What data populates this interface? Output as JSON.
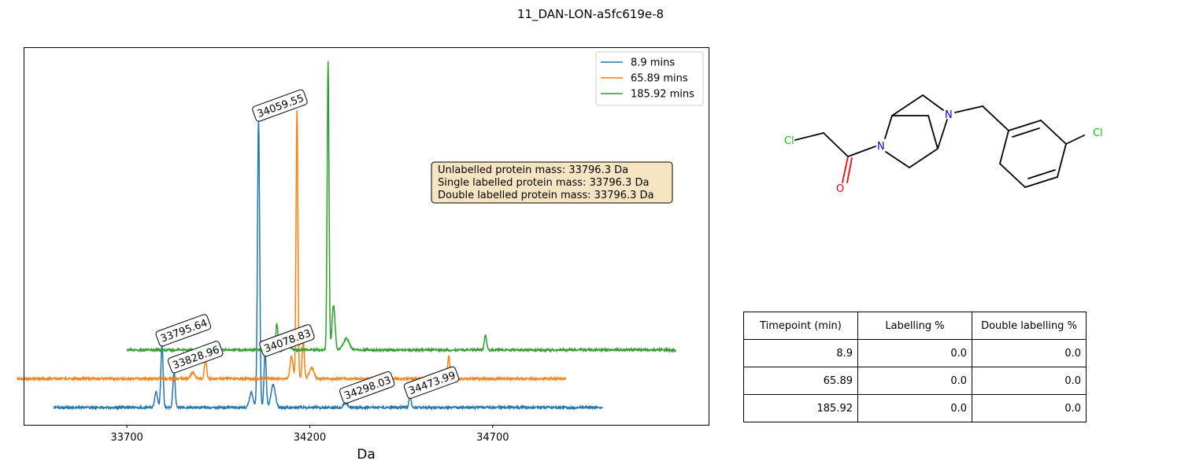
{
  "figure": {
    "title": "11_DAN-LON-a5fc619e-8"
  },
  "chart_data": {
    "type": "line",
    "xlabel": "Da",
    "ylabel": "",
    "xlim": [
      33420,
      35290
    ],
    "xticks": [
      33700,
      34200,
      34700
    ],
    "grid": false,
    "legend_position": "top-right",
    "info_box": [
      "Unlabelled protein mass: 33796.3 Da",
      "Single labelled protein mass: 33796.3 Da",
      "Double labelled protein mass: 33796.3 Da"
    ],
    "series": [
      {
        "name": "8.9 mins",
        "color": "#1f77b4",
        "baseline": 0.0,
        "x_range": [
          33500,
          35000
        ],
        "peaks": [
          {
            "x": 33780,
            "h": 0.04,
            "w": 4
          },
          {
            "x": 33796,
            "h": 0.17,
            "w": 3
          },
          {
            "x": 33829,
            "h": 0.1,
            "w": 3
          },
          {
            "x": 34040,
            "h": 0.04,
            "w": 5
          },
          {
            "x": 34060,
            "h": 0.77,
            "w": 3
          },
          {
            "x": 34078,
            "h": 0.15,
            "w": 3
          },
          {
            "x": 34100,
            "h": 0.06,
            "w": 6
          },
          {
            "x": 34298,
            "h": 0.015,
            "w": 5
          },
          {
            "x": 34474,
            "h": 0.03,
            "w": 3
          }
        ],
        "labels": [
          {
            "x": 33795.64,
            "text": "33795.64"
          },
          {
            "x": 33828.96,
            "text": "33828.96"
          },
          {
            "x": 34059.55,
            "text": "34059.55"
          },
          {
            "x": 34078.83,
            "text": "34078.83"
          },
          {
            "x": 34298.03,
            "text": "34298.03"
          },
          {
            "x": 34473.99,
            "text": "34473.99"
          }
        ]
      },
      {
        "name": "65.89 mins",
        "color": "#ff7f0e",
        "baseline": 0.077,
        "x_range": [
          33400,
          34900
        ],
        "peaks": [
          {
            "x": 33880,
            "h": 0.015,
            "w": 6
          },
          {
            "x": 33915,
            "h": 0.05,
            "w": 3
          },
          {
            "x": 34150,
            "h": 0.06,
            "w": 4
          },
          {
            "x": 34165,
            "h": 0.72,
            "w": 2.5
          },
          {
            "x": 34182,
            "h": 0.1,
            "w": 3
          },
          {
            "x": 34205,
            "h": 0.03,
            "w": 6
          },
          {
            "x": 34580,
            "h": 0.06,
            "w": 3
          }
        ],
        "labels": []
      },
      {
        "name": "185.92 mins",
        "color": "#2ca02c",
        "baseline": 0.154,
        "x_range": [
          33700,
          35200
        ],
        "peaks": [
          {
            "x": 34110,
            "h": 0.07,
            "w": 3
          },
          {
            "x": 34140,
            "h": 0.02,
            "w": 6
          },
          {
            "x": 34250,
            "h": 0.77,
            "w": 2.5
          },
          {
            "x": 34265,
            "h": 0.12,
            "w": 4
          },
          {
            "x": 34300,
            "h": 0.03,
            "w": 8
          },
          {
            "x": 34680,
            "h": 0.04,
            "w": 3
          }
        ],
        "labels": []
      }
    ]
  },
  "molecule": {
    "atoms": [
      "Cl",
      "N",
      "O",
      "N",
      "Cl"
    ],
    "colors": {
      "N": "#0000ff",
      "O": "#ff0000",
      "Cl": "#00cc00"
    }
  },
  "table": {
    "headers": [
      "Timepoint (min)",
      "Labelling %",
      "Double labelling %"
    ],
    "rows": [
      [
        "8.9",
        "0.0",
        "0.0"
      ],
      [
        "65.89",
        "0.0",
        "0.0"
      ],
      [
        "185.92",
        "0.0",
        "0.0"
      ]
    ]
  }
}
